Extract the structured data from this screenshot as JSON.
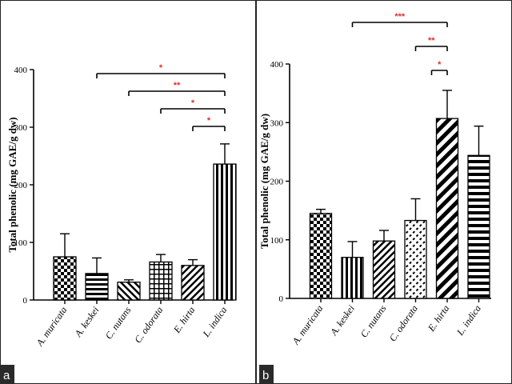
{
  "chart_data": [
    {
      "panel": "a",
      "type": "bar",
      "ylabel": "Total phenolic (mg GAE/g dw)",
      "xlabel": "",
      "ylim": [
        0,
        400
      ],
      "yticks": [
        0,
        100,
        200,
        300,
        400
      ],
      "categories": [
        "A. muricata",
        "A. keskei",
        "C. nutans",
        "C. odorata",
        "E. hirta",
        "L. indica"
      ],
      "values": [
        75,
        46,
        31,
        66,
        60,
        236
      ],
      "errors": [
        40,
        27,
        4,
        13,
        10,
        35
      ],
      "patterns": [
        "checker",
        "hstripe",
        "diag-down",
        "grid",
        "diag-up",
        "vstripe"
      ],
      "significance": [
        {
          "from": "A. keskei",
          "to": "L. indica",
          "label": "*"
        },
        {
          "from": "C. nutans",
          "to": "L. indica",
          "label": "**"
        },
        {
          "from": "C. odorata",
          "to": "L. indica",
          "label": "*"
        },
        {
          "from": "E. hirta",
          "to": "L. indica",
          "label": "*"
        }
      ]
    },
    {
      "panel": "b",
      "type": "bar",
      "ylabel": "Total phenolic (mg GAE/g dw)",
      "xlabel": "",
      "ylim": [
        0,
        400
      ],
      "yticks": [
        0,
        100,
        200,
        300,
        400
      ],
      "categories": [
        "A. muricata",
        "A. keskei",
        "C. nutans",
        "C. odorata",
        "E. hirta",
        "L. indica"
      ],
      "values": [
        145,
        70,
        98,
        133,
        307,
        244
      ],
      "errors": [
        7,
        27,
        18,
        37,
        48,
        50
      ],
      "patterns": [
        "checker",
        "vstripe",
        "diag-up",
        "dots-diag",
        "diag-up-wide",
        "hstripe-wide"
      ],
      "significance": [
        {
          "from": "A. keskei",
          "to": "E. hirta",
          "label": "***"
        },
        {
          "from": "C. odorata",
          "to": "E. hirta",
          "label": "**"
        },
        {
          "from": "C. odorata",
          "to": "E. hirta",
          "label": "*"
        }
      ]
    }
  ]
}
